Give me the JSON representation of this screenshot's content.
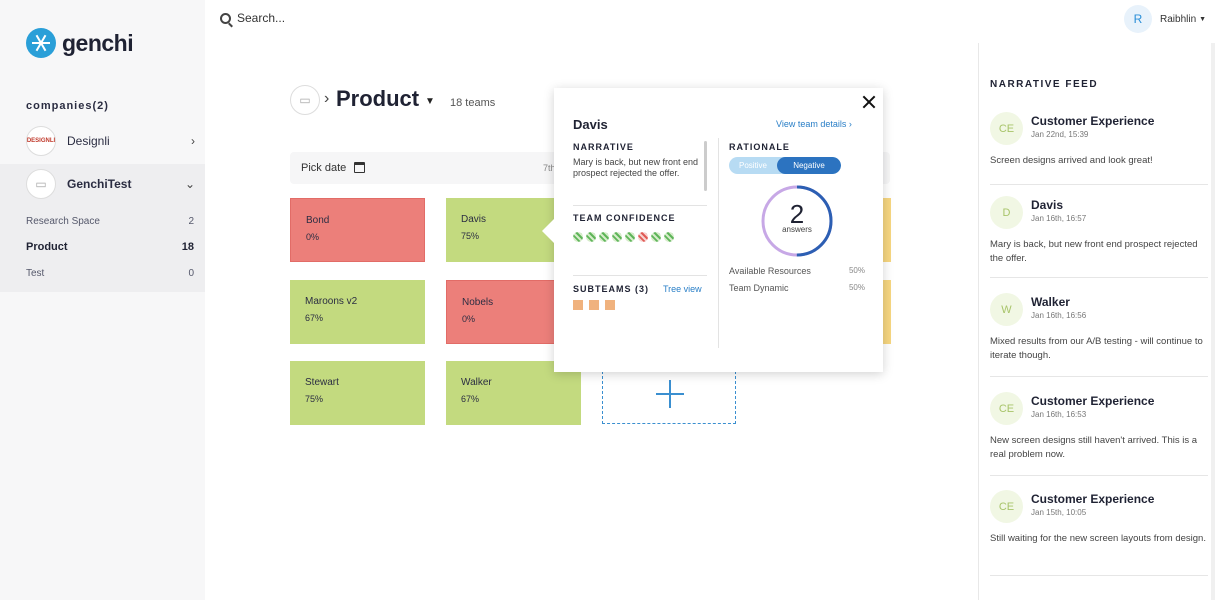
{
  "brand": {
    "name": "genchi"
  },
  "search": {
    "placeholder": "Search..."
  },
  "user": {
    "initial": "R",
    "name": "Raibhlin"
  },
  "sidebar": {
    "companies_title": "companies(2)",
    "companies": [
      {
        "name": "Designli",
        "logo_text": "DESIGNLI"
      },
      {
        "name": "GenchiTest"
      }
    ],
    "spaces": [
      {
        "name": "Research Space",
        "count": "2"
      },
      {
        "name": "Product",
        "count": "18"
      },
      {
        "name": "Test",
        "count": "0"
      }
    ]
  },
  "page": {
    "title": "Product",
    "teams_count": "18 teams"
  },
  "datebar": {
    "pick_date": "Pick date",
    "date_label": "7th"
  },
  "teams": [
    {
      "name": "Bond",
      "pct": "0%",
      "status": "red"
    },
    {
      "name": "Davis",
      "pct": "75%",
      "status": "green"
    },
    {
      "name": "Maroons v2",
      "pct": "67%",
      "status": "green"
    },
    {
      "name": "Nobels",
      "pct": "0%",
      "status": "red"
    },
    {
      "name": "Stewart",
      "pct": "75%",
      "status": "green"
    },
    {
      "name": "Walker",
      "pct": "67%",
      "status": "green"
    }
  ],
  "popup": {
    "team": "Davis",
    "view_details": "View team details ›",
    "narrative_title": "NARRATIVE",
    "narrative_text": "Mary is back, but new front end prospect rejected the offer.",
    "confidence_title": "TEAM CONFIDENCE",
    "confidence": [
      "positive",
      "positive",
      "positive",
      "positive",
      "positive",
      "negative",
      "positive",
      "positive"
    ],
    "subteams_title": "SUBTEAMS (3)",
    "tree_view": "Tree view",
    "rationale_title": "RATIONALE",
    "toggle_positive": "Positive",
    "toggle_negative": "Negative",
    "answers_count": "2",
    "answers_label": "answers",
    "answers_positive_fraction": 0.5,
    "rationale_items": [
      {
        "label": "Available Resources",
        "pct": "50%"
      },
      {
        "label": "Team Dynamic",
        "pct": "50%"
      }
    ]
  },
  "feed": {
    "title": "NARRATIVE FEED",
    "items": [
      {
        "initials": "CE",
        "author": "Customer Experience",
        "date": "Jan 22nd, 15:39",
        "message": "Screen designs arrived and look great!"
      },
      {
        "initials": "D",
        "author": "Davis",
        "date": "Jan 16th, 16:57",
        "message": "Mary is back, but new front end prospect rejected the offer."
      },
      {
        "initials": "W",
        "author": "Walker",
        "date": "Jan 16th, 16:56",
        "message": "Mixed results from our A/B testing - will continue to iterate though."
      },
      {
        "initials": "CE",
        "author": "Customer Experience",
        "date": "Jan 16th, 16:53",
        "message": "New screen designs still haven't arrived. This is a real problem now."
      },
      {
        "initials": "CE",
        "author": "Customer Experience",
        "date": "Jan 15th, 10:05",
        "message": "Still waiting for the new screen layouts from design."
      }
    ]
  },
  "colors": {
    "accent": "#2a7fc7",
    "red_team": "#ec7f7a",
    "green_team": "#c3da7f",
    "yellow_team": "#f6d680"
  }
}
